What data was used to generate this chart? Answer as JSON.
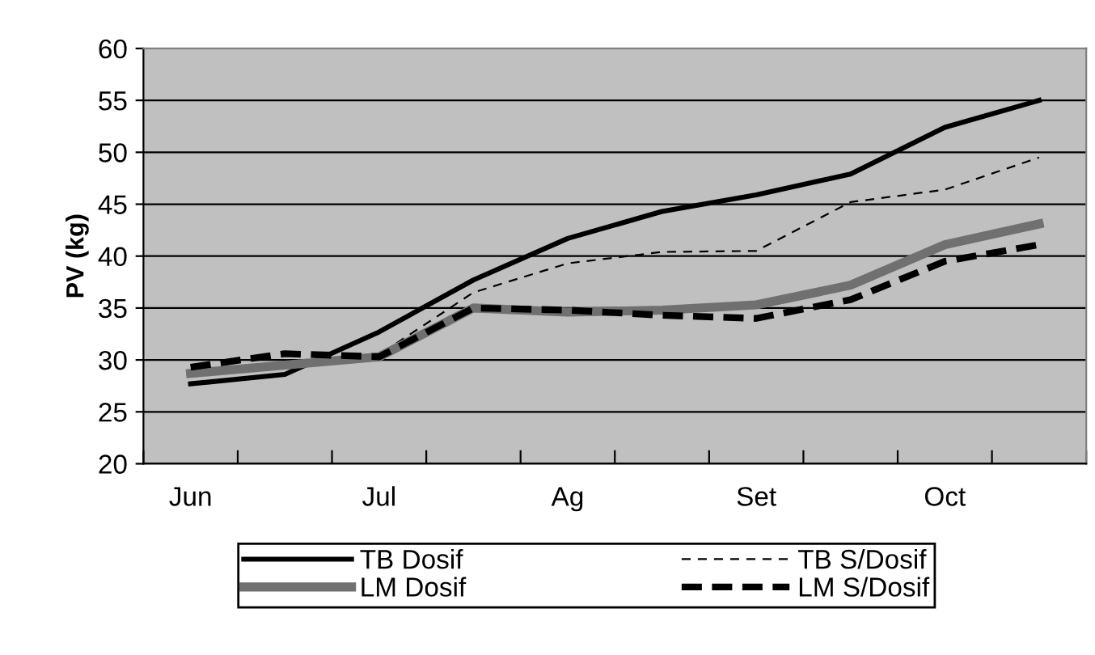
{
  "chart_data": {
    "type": "line",
    "ylabel": "PV (kg)",
    "categories": [
      "Jun",
      null,
      "Jul",
      null,
      "Ag",
      null,
      "Set",
      null,
      "Oct",
      null
    ],
    "series": [
      {
        "name": "TB Dosif",
        "color": "#000000",
        "line_style": "solid",
        "values": [
          27.7,
          28.6,
          32.7,
          37.7,
          41.7,
          44.3,
          45.9,
          47.9,
          52.4,
          55.0
        ]
      },
      {
        "name": "TB S/Dosif",
        "color": "#000000",
        "line_style": "dashed",
        "values": [
          28.5,
          29.5,
          30.5,
          36.5,
          39.3,
          40.4,
          40.5,
          45.2,
          46.4,
          49.5
        ]
      },
      {
        "name": "LM Dosif",
        "color": "#707070",
        "line_style": "solid",
        "values": [
          28.7,
          29.5,
          30.3,
          35.0,
          34.6,
          34.8,
          35.3,
          37.2,
          41.1,
          43.1
        ]
      },
      {
        "name": "LM S/Dosif",
        "color": "#000000",
        "line_style": "dashed",
        "values": [
          29.3,
          30.6,
          30.3,
          35.0,
          34.8,
          34.3,
          34.0,
          35.8,
          39.5,
          41.1
        ]
      }
    ],
    "ylim": [
      20,
      60
    ],
    "yticks": [
      20,
      25,
      30,
      35,
      40,
      45,
      50,
      55,
      60
    ],
    "grid": "y",
    "legend": "bottom",
    "marker": "none"
  }
}
